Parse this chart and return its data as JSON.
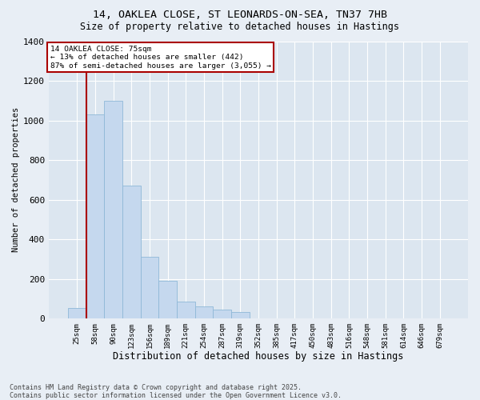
{
  "title1": "14, OAKLEA CLOSE, ST LEONARDS-ON-SEA, TN37 7HB",
  "title2": "Size of property relative to detached houses in Hastings",
  "xlabel": "Distribution of detached houses by size in Hastings",
  "ylabel": "Number of detached properties",
  "categories": [
    "25sqm",
    "58sqm",
    "90sqm",
    "123sqm",
    "156sqm",
    "189sqm",
    "221sqm",
    "254sqm",
    "287sqm",
    "319sqm",
    "352sqm",
    "385sqm",
    "417sqm",
    "450sqm",
    "483sqm",
    "516sqm",
    "548sqm",
    "581sqm",
    "614sqm",
    "646sqm",
    "679sqm"
  ],
  "values": [
    55,
    1030,
    1100,
    670,
    310,
    190,
    85,
    60,
    45,
    35,
    0,
    0,
    0,
    0,
    0,
    0,
    0,
    0,
    0,
    0,
    0
  ],
  "bar_color": "#c5d8ee",
  "bar_edge_color": "#8fb8d8",
  "vline_color": "#aa0000",
  "ylim": [
    0,
    1400
  ],
  "yticks": [
    0,
    200,
    400,
    600,
    800,
    1000,
    1200,
    1400
  ],
  "annotation_title": "14 OAKLEA CLOSE: 75sqm",
  "annotation_line2": "← 13% of detached houses are smaller (442)",
  "annotation_line3": "87% of semi-detached houses are larger (3,055) →",
  "annotation_box_color": "#aa0000",
  "footer_line1": "Contains HM Land Registry data © Crown copyright and database right 2025.",
  "footer_line2": "Contains public sector information licensed under the Open Government Licence v3.0.",
  "bg_color": "#e8eef5",
  "plot_bg_color": "#dce6f0",
  "grid_color": "#c0cfe0"
}
